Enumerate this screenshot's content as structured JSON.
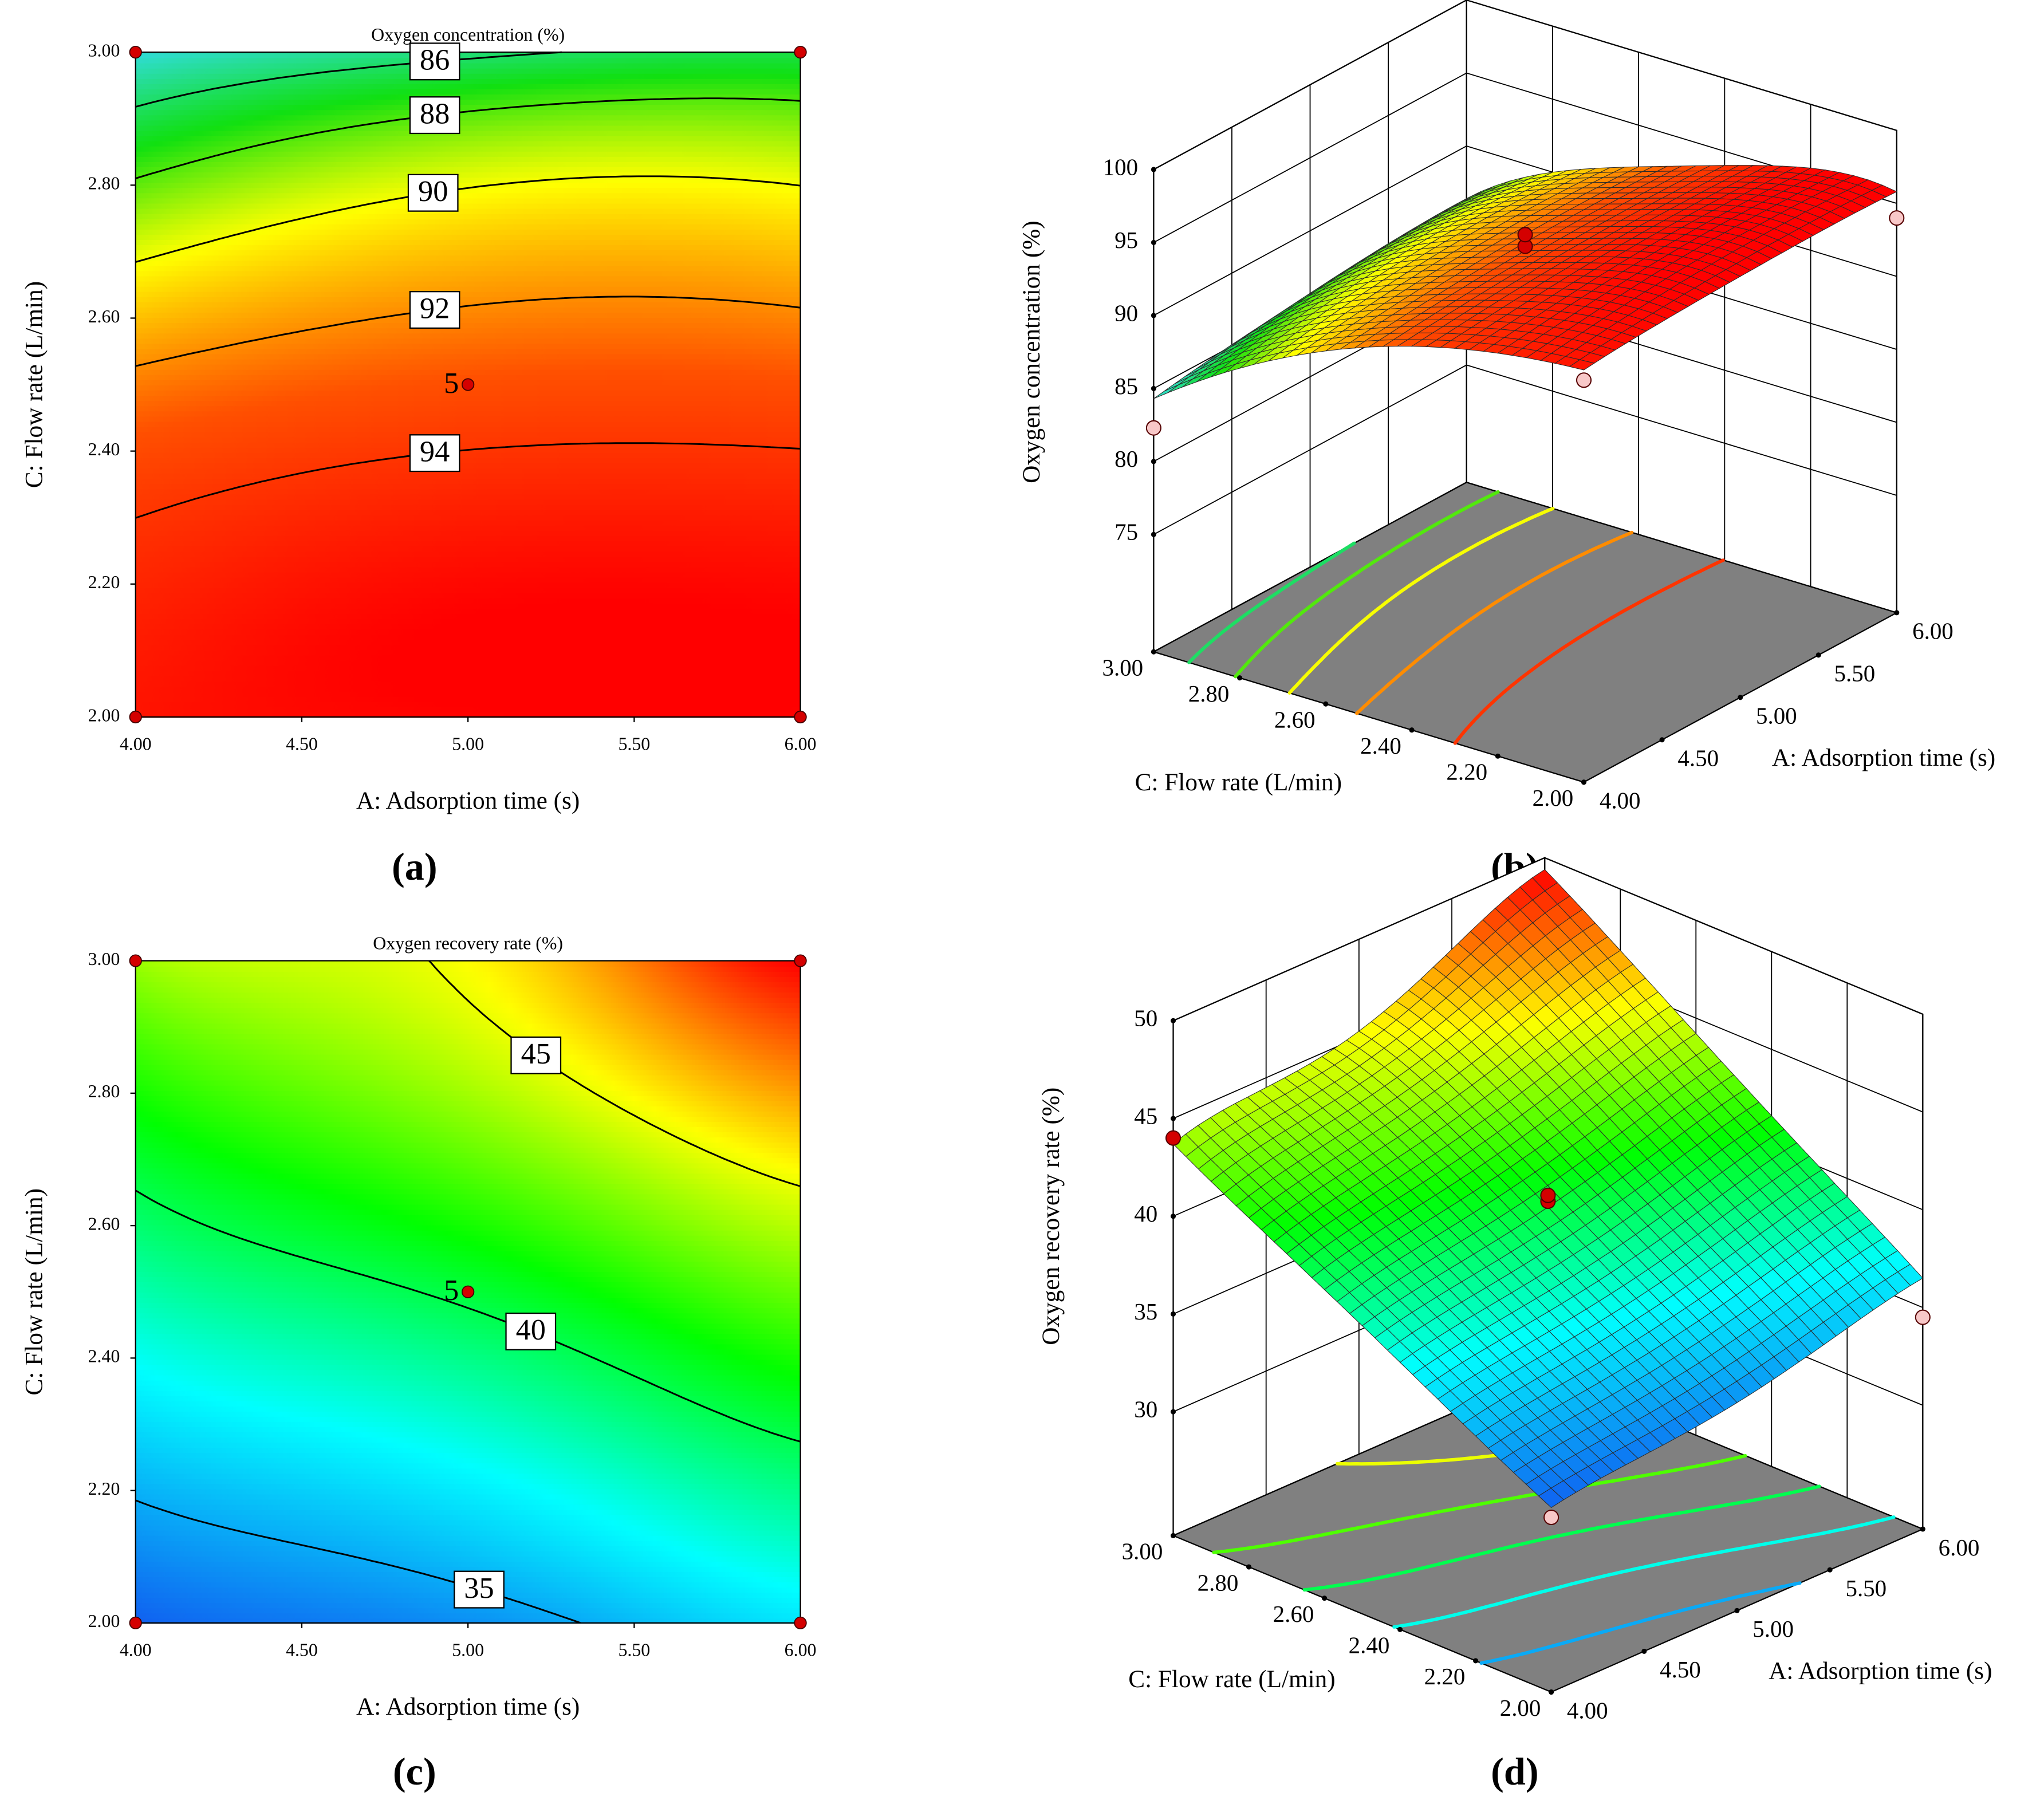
{
  "chart_data": [
    {
      "type": "contour",
      "panel_label": "(a)",
      "title": "Oxygen concentration (%)",
      "x_label": "A: Adsorption time (s)",
      "y_label": "C: Flow rate (L/min)",
      "x": [
        4,
        4.5,
        5,
        5.5,
        6
      ],
      "y": [
        2,
        2.25,
        2.5,
        2.75,
        3
      ],
      "z": [
        [
          95.2,
          95.6,
          95.8,
          95.9,
          95.8
        ],
        [
          94.3,
          94.9,
          95.3,
          95.4,
          95.3
        ],
        [
          92.3,
          92.8,
          93.1,
          93.2,
          93.1
        ],
        [
          89.0,
          90.0,
          90.6,
          90.8,
          90.6
        ],
        [
          84.3,
          85.1,
          85.7,
          86.2,
          86.4
        ]
      ],
      "levels": [
        86,
        88,
        90,
        92,
        94
      ],
      "xlim": [
        4,
        6
      ],
      "ylim": [
        2,
        3
      ],
      "xticks": [
        {
          "value": 4,
          "label": "4.00"
        },
        {
          "value": 4.5,
          "label": "4.50"
        },
        {
          "value": 5,
          "label": "5.00"
        },
        {
          "value": 5.5,
          "label": "5.50"
        },
        {
          "value": 6,
          "label": "6.00"
        }
      ],
      "yticks": [
        {
          "value": 2,
          "label": "2.00"
        },
        {
          "value": 2.2,
          "label": "2.20"
        },
        {
          "value": 2.4,
          "label": "2.40"
        },
        {
          "value": 2.6,
          "label": "2.60"
        },
        {
          "value": 2.8,
          "label": "2.80"
        },
        {
          "value": 3,
          "label": "3.00"
        }
      ],
      "points": {
        "x": [
          4,
          4,
          6,
          6,
          5
        ],
        "y": [
          2,
          3,
          2,
          3,
          2.5
        ]
      },
      "center_label": "5",
      "colorscale": [
        "#30dcd8",
        "#10e010",
        "#ffff00",
        "#ff5000",
        "#ff0000"
      ]
    },
    {
      "type": "surface3d",
      "panel_label": "(b)",
      "x_label": "A: Adsorption time (s)",
      "y_label": "C: Flow rate (L/min)",
      "z_label": "Oxygen concentration (%)",
      "x": [
        4,
        4.5,
        5,
        5.5,
        6
      ],
      "y": [
        2,
        2.25,
        2.5,
        2.75,
        3
      ],
      "z": [
        [
          95.2,
          95.6,
          95.8,
          95.9,
          95.8
        ],
        [
          94.3,
          94.9,
          95.3,
          95.4,
          95.3
        ],
        [
          92.3,
          92.8,
          93.1,
          93.2,
          93.1
        ],
        [
          89.0,
          90.0,
          90.6,
          90.8,
          90.6
        ],
        [
          84.3,
          85.1,
          85.7,
          86.2,
          86.4
        ]
      ],
      "levels": [
        86,
        88,
        90,
        92,
        94
      ],
      "xlim": [
        4,
        6
      ],
      "ylim": [
        2,
        3
      ],
      "zlim": [
        75,
        100
      ],
      "xticks": [
        {
          "value": 4,
          "label": "4.00"
        },
        {
          "value": 4.5,
          "label": "4.50"
        },
        {
          "value": 5,
          "label": "5.00"
        },
        {
          "value": 5.5,
          "label": "5.50"
        },
        {
          "value": 6,
          "label": "6.00"
        }
      ],
      "yticks": [
        {
          "value": 2,
          "label": "2.00"
        },
        {
          "value": 2.2,
          "label": "2.20"
        },
        {
          "value": 2.4,
          "label": "2.40"
        },
        {
          "value": 2.6,
          "label": "2.60"
        },
        {
          "value": 2.8,
          "label": "2.80"
        },
        {
          "value": 3,
          "label": "3.00"
        }
      ],
      "zticks": [
        75,
        80,
        85,
        90,
        95,
        100
      ],
      "points": {
        "x": [
          4,
          4,
          6,
          5,
          5
        ],
        "y": [
          3,
          2,
          2,
          2.5,
          2.5
        ],
        "z": [
          82.3,
          94.5,
          94.0,
          93.4,
          94.2
        ]
      },
      "colorscale": [
        "#30dcd8",
        "#10e010",
        "#ffff00",
        "#ff5000",
        "#ff0000"
      ]
    },
    {
      "type": "contour",
      "panel_label": "(c)",
      "title": "Oxygen recovery rate (%)",
      "x_label": "A: Adsorption time (s)",
      "y_label": "C: Flow rate (L/min)",
      "x": [
        4,
        4.5,
        5,
        5.5,
        6
      ],
      "y": [
        2,
        2.25,
        2.5,
        2.75,
        3
      ],
      "z": [
        [
          33.1,
          33.7,
          34.3,
          35.4,
          36.5
        ],
        [
          35.7,
          36.5,
          37.3,
          38.5,
          39.7
        ],
        [
          38.4,
          39.4,
          40.3,
          41.6,
          42.9
        ],
        [
          41.0,
          42.2,
          43.3,
          44.8,
          46.2
        ],
        [
          43.7,
          44.5,
          45.3,
          47.4,
          49.4
        ]
      ],
      "levels": [
        35,
        40,
        45
      ],
      "xlim": [
        4,
        6
      ],
      "ylim": [
        2,
        3
      ],
      "xticks": [
        {
          "value": 4,
          "label": "4.00"
        },
        {
          "value": 4.5,
          "label": "4.50"
        },
        {
          "value": 5,
          "label": "5.00"
        },
        {
          "value": 5.5,
          "label": "5.50"
        },
        {
          "value": 6,
          "label": "6.00"
        }
      ],
      "yticks": [
        {
          "value": 2,
          "label": "2.00"
        },
        {
          "value": 2.2,
          "label": "2.20"
        },
        {
          "value": 2.4,
          "label": "2.40"
        },
        {
          "value": 2.6,
          "label": "2.60"
        },
        {
          "value": 2.8,
          "label": "2.80"
        },
        {
          "value": 3,
          "label": "3.00"
        }
      ],
      "points": {
        "x": [
          4,
          4,
          6,
          6,
          5
        ],
        "y": [
          2,
          3,
          2,
          3,
          2.5
        ]
      },
      "center_label": "5",
      "colorscale": [
        "#1060f0",
        "#00ffff",
        "#00ff00",
        "#ffff00",
        "#ff0000"
      ]
    },
    {
      "type": "surface3d",
      "panel_label": "(d)",
      "x_label": "A: Adsorption time (s)",
      "y_label": "C: Flow rate (L/min)",
      "z_label": "Oxygen recovery rate (%)",
      "x": [
        4,
        4.5,
        5,
        5.5,
        6
      ],
      "y": [
        2,
        2.25,
        2.5,
        2.75,
        3
      ],
      "z": [
        [
          33.1,
          33.7,
          34.3,
          35.4,
          36.5
        ],
        [
          35.7,
          36.5,
          37.3,
          38.5,
          39.7
        ],
        [
          38.4,
          39.4,
          40.3,
          41.6,
          42.9
        ],
        [
          41.0,
          42.2,
          43.3,
          44.8,
          46.2
        ],
        [
          43.7,
          44.5,
          45.3,
          47.4,
          49.4
        ]
      ],
      "levels": [
        35,
        37.5,
        40,
        42.5,
        45
      ],
      "xlim": [
        4,
        6
      ],
      "ylim": [
        2,
        3
      ],
      "zlim": [
        30,
        50
      ],
      "xticks": [
        {
          "value": 4,
          "label": "4.00"
        },
        {
          "value": 4.5,
          "label": "4.50"
        },
        {
          "value": 5,
          "label": "5.00"
        },
        {
          "value": 5.5,
          "label": "5.50"
        },
        {
          "value": 6,
          "label": "6.00"
        }
      ],
      "yticks": [
        {
          "value": 2,
          "label": "2.00"
        },
        {
          "value": 2.2,
          "label": "2.20"
        },
        {
          "value": 2.4,
          "label": "2.40"
        },
        {
          "value": 2.6,
          "label": "2.60"
        },
        {
          "value": 2.8,
          "label": "2.80"
        },
        {
          "value": 3,
          "label": "3.00"
        }
      ],
      "zticks": [
        30,
        35,
        40,
        45,
        50
      ],
      "points": {
        "x": [
          4,
          5,
          5,
          6,
          4
        ],
        "y": [
          3,
          2.5,
          2.5,
          2,
          2
        ],
        "z": [
          44.0,
          40.6,
          40.9,
          34.5,
          32.6
        ]
      },
      "colorscale": [
        "#1060f0",
        "#00ffff",
        "#00ff00",
        "#ffff00",
        "#ff0000"
      ]
    }
  ]
}
